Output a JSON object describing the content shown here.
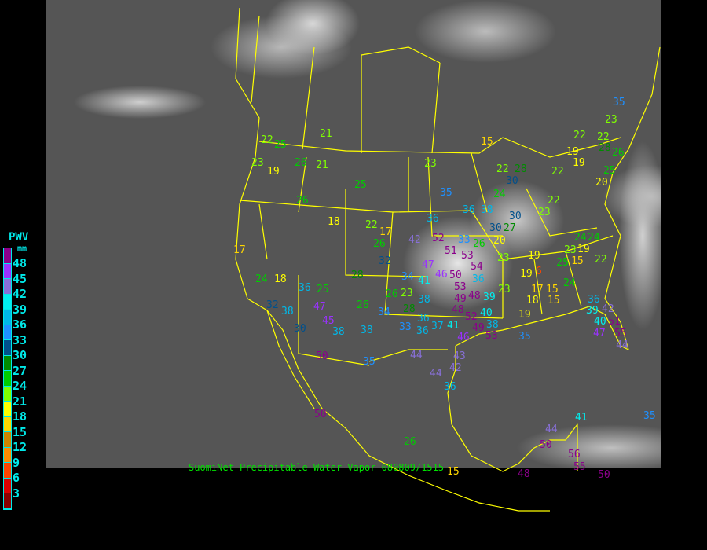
{
  "caption": "SuomiNet Precipitable Water Vapor 080809/1515",
  "legend": {
    "title": "PWV",
    "unit": "mm",
    "labels": [
      "48",
      "45",
      "42",
      "39",
      "36",
      "33",
      "30",
      "27",
      "24",
      "21",
      "18",
      "15",
      "12",
      "9",
      "6",
      "3"
    ],
    "colors": [
      "#8b008b",
      "#9a32ff",
      "#8870d8",
      "#00f0f0",
      "#00b8e8",
      "#1e90ff",
      "#00508c",
      "#008b00",
      "#00cd00",
      "#7fff00",
      "#ffff00",
      "#ffd700",
      "#cd8500",
      "#ff8c00",
      "#ff4500",
      "#dd0000",
      "#8b0000"
    ]
  },
  "border_color": "#ffff00",
  "stations": [
    21,
    22,
    25,
    23,
    19,
    26,
    21,
    25,
    26,
    23,
    35,
    36,
    18,
    22,
    17,
    26,
    32,
    17,
    18,
    24,
    36,
    25,
    28,
    47,
    32,
    38,
    45,
    30,
    38,
    50,
    38,
    26,
    34,
    26,
    23,
    28,
    33,
    36,
    37,
    41,
    36,
    38,
    41,
    34,
    42,
    52,
    33,
    26,
    51,
    53,
    47,
    54,
    36,
    46,
    50,
    53,
    49,
    48,
    48,
    39,
    52,
    49,
    38,
    46,
    53,
    40,
    30,
    20,
    27,
    23,
    30,
    23,
    22,
    24,
    28,
    22,
    30,
    36,
    38,
    22,
    22,
    28,
    26,
    15,
    19,
    19,
    22,
    25,
    20,
    19,
    15,
    24,
    24,
    23,
    22,
    25,
    19,
    23,
    19,
    6,
    17,
    15,
    24,
    19,
    18,
    15,
    36,
    39,
    42,
    40,
    51,
    47,
    55,
    44,
    35,
    44,
    43,
    42,
    44,
    36,
    41,
    44,
    50,
    56,
    55,
    48,
    50,
    35,
    35,
    26,
    15,
    35,
    23,
    50
  ]
}
